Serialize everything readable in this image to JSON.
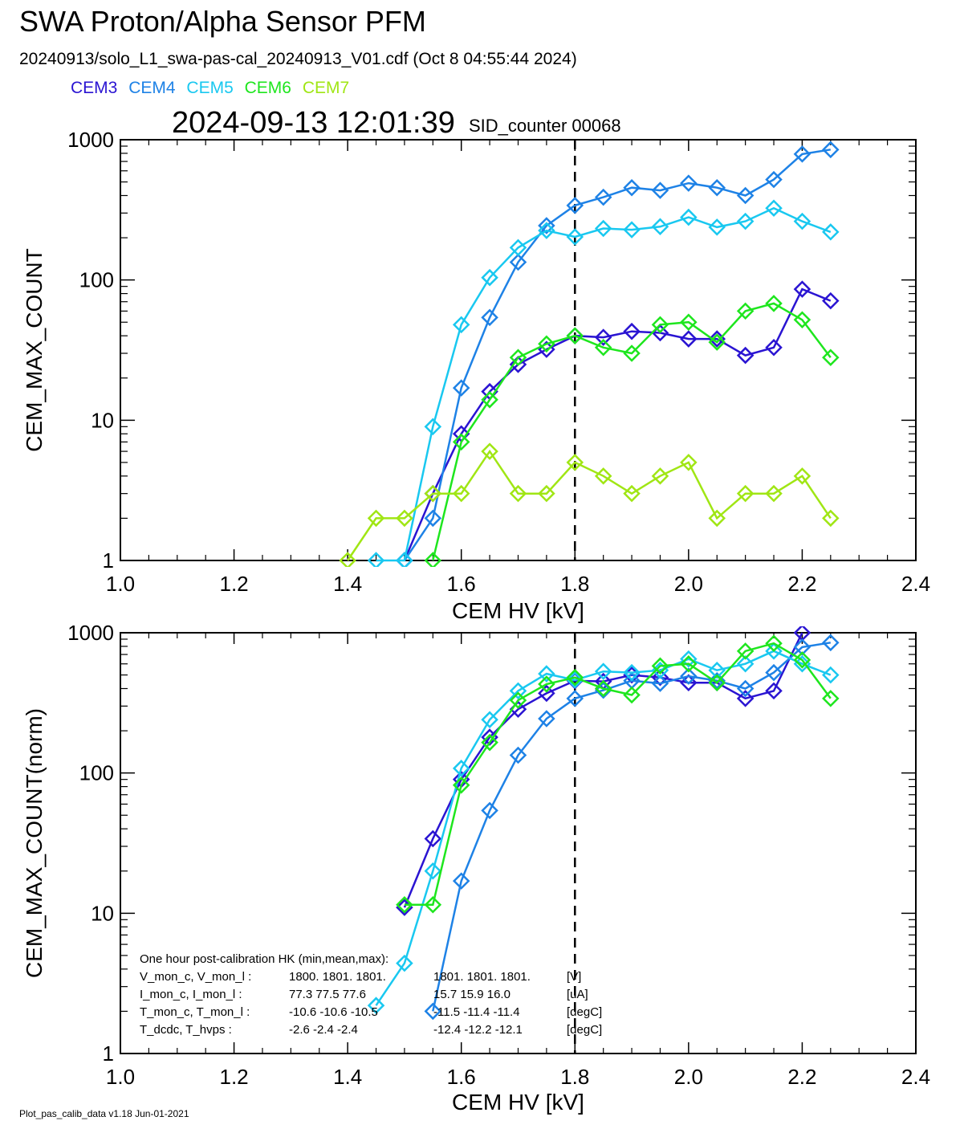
{
  "header": {
    "title": "SWA Proton/Alpha Sensor PFM",
    "subtitle": "20240913/solo_L1_swa-pas-cal_20240913_V01.cdf  (Oct  8 04:55:44 2024)",
    "timestamp": "2024-09-13 12:01:39",
    "sid_counter": "SID_counter 00068"
  },
  "legend": [
    {
      "label": "CEM3",
      "color": "#2a14d2"
    },
    {
      "label": "CEM4",
      "color": "#1e82e6"
    },
    {
      "label": "CEM5",
      "color": "#19c8f0"
    },
    {
      "label": "CEM6",
      "color": "#1ee61e"
    },
    {
      "label": "CEM7",
      "color": "#a0e614"
    }
  ],
  "footer": "Plot_pas_calib_data v1.18 Jun-01-2021",
  "hk_box": {
    "heading": "One hour post-calibration HK (min,mean,max):",
    "rows": [
      {
        "label": "V_mon_c, V_mon_l :",
        "a": "1800.  1801.  1801.",
        "b": "1801.  1801.  1801.",
        "unit": "[V]"
      },
      {
        "label": "I_mon_c,  I_mon_l :",
        "a": "77.3   77.5   77.6",
        "b": "15.7   15.9   16.0",
        "unit": "[uA]"
      },
      {
        "label": "T_mon_c, T_mon_l :",
        "a": "-10.6  -10.6  -10.5",
        "b": "-11.5  -11.4  -11.4",
        "unit": "[degC]"
      },
      {
        "label": "T_dcdc,    T_hvps :",
        "a": "-2.6   -2.4   -2.4",
        "b": "-12.4  -12.2  -12.1",
        "unit": "[degC]"
      }
    ]
  },
  "chart_data": [
    {
      "type": "line",
      "title": "",
      "xlabel": "CEM HV [kV]",
      "ylabel": "CEM_MAX_COUNT",
      "xlim": [
        1.0,
        2.4
      ],
      "ylim": [
        1,
        1000
      ],
      "yscale": "log",
      "xticks": [
        "1.0",
        "1.2",
        "1.4",
        "1.6",
        "1.8",
        "2.0",
        "2.2",
        "2.4"
      ],
      "yticks": [
        "1",
        "10",
        "100",
        "1000"
      ],
      "vline": 1.8,
      "series": [
        {
          "name": "CEM3",
          "color": "#2a14d2",
          "points": [
            [
              1.5,
              1
            ],
            [
              1.55,
              3
            ],
            [
              1.6,
              8
            ],
            [
              1.65,
              16
            ],
            [
              1.7,
              25
            ],
            [
              1.75,
              32
            ],
            [
              1.8,
              40
            ],
            [
              1.85,
              39
            ],
            [
              1.9,
              43
            ],
            [
              1.95,
              42
            ],
            [
              2.0,
              38
            ],
            [
              2.05,
              38
            ],
            [
              2.1,
              29
            ],
            [
              2.15,
              33
            ],
            [
              2.2,
              86
            ],
            [
              2.25,
              71
            ]
          ]
        },
        {
          "name": "CEM4",
          "color": "#1e82e6",
          "points": [
            [
              1.5,
              1
            ],
            [
              1.55,
              2
            ],
            [
              1.6,
              17
            ],
            [
              1.65,
              54
            ],
            [
              1.7,
              134
            ],
            [
              1.75,
              244
            ],
            [
              1.8,
              340
            ],
            [
              1.85,
              389
            ],
            [
              1.9,
              455
            ],
            [
              1.95,
              435
            ],
            [
              2.0,
              490
            ],
            [
              2.05,
              455
            ],
            [
              2.1,
              400
            ],
            [
              2.15,
              520
            ],
            [
              2.2,
              790
            ],
            [
              2.25,
              850
            ]
          ]
        },
        {
          "name": "CEM5",
          "color": "#19c8f0",
          "points": [
            [
              1.45,
              1
            ],
            [
              1.5,
              1
            ],
            [
              1.55,
              9
            ],
            [
              1.6,
              48
            ],
            [
              1.65,
              104
            ],
            [
              1.7,
              170
            ],
            [
              1.75,
              225
            ],
            [
              1.8,
              203
            ],
            [
              1.85,
              233
            ],
            [
              1.9,
              228
            ],
            [
              1.95,
              240
            ],
            [
              2.0,
              280
            ],
            [
              2.05,
              238
            ],
            [
              2.1,
              262
            ],
            [
              2.15,
              325
            ],
            [
              2.2,
              262
            ],
            [
              2.25,
              220
            ]
          ]
        },
        {
          "name": "CEM6",
          "color": "#1ee61e",
          "points": [
            [
              1.55,
              1
            ],
            [
              1.6,
              7
            ],
            [
              1.65,
              14
            ],
            [
              1.7,
              28
            ],
            [
              1.75,
              35
            ],
            [
              1.8,
              40
            ],
            [
              1.85,
              33
            ],
            [
              1.9,
              30
            ],
            [
              1.95,
              48
            ],
            [
              2.0,
              50
            ],
            [
              2.05,
              36
            ],
            [
              2.1,
              60
            ],
            [
              2.15,
              68
            ],
            [
              2.2,
              52
            ],
            [
              2.25,
              28
            ]
          ]
        },
        {
          "name": "CEM7",
          "color": "#a0e614",
          "points": [
            [
              1.4,
              1
            ],
            [
              1.45,
              2
            ],
            [
              1.5,
              2
            ],
            [
              1.55,
              3
            ],
            [
              1.6,
              3
            ],
            [
              1.65,
              6
            ],
            [
              1.7,
              3
            ],
            [
              1.75,
              3
            ],
            [
              1.8,
              5
            ],
            [
              1.85,
              4
            ],
            [
              1.9,
              3
            ],
            [
              1.95,
              4
            ],
            [
              2.0,
              5
            ],
            [
              2.05,
              2
            ],
            [
              2.1,
              3
            ],
            [
              2.15,
              3
            ],
            [
              2.2,
              4
            ],
            [
              2.25,
              2
            ]
          ]
        }
      ]
    },
    {
      "type": "line",
      "title": "",
      "xlabel": "CEM HV [kV]",
      "ylabel": "CEM_MAX_COUNT(norm)",
      "xlim": [
        1.0,
        2.4
      ],
      "ylim": [
        1,
        1000
      ],
      "yscale": "log",
      "xticks": [
        "1.0",
        "1.2",
        "1.4",
        "1.6",
        "1.8",
        "2.0",
        "2.2",
        "2.4"
      ],
      "yticks": [
        "1",
        "10",
        "100",
        "1000"
      ],
      "vline": 1.8,
      "series": [
        {
          "name": "CEM3",
          "color": "#2a14d2",
          "points": [
            [
              1.5,
              11
            ],
            [
              1.55,
              34
            ],
            [
              1.6,
              90
            ],
            [
              1.65,
              180
            ],
            [
              1.7,
              285
            ],
            [
              1.75,
              370
            ],
            [
              1.8,
              455
            ],
            [
              1.85,
              450
            ],
            [
              1.9,
              500
            ],
            [
              1.95,
              480
            ],
            [
              2.0,
              440
            ],
            [
              2.05,
              440
            ],
            [
              2.1,
              340
            ],
            [
              2.15,
              385
            ],
            [
              2.2,
              1000
            ]
          ]
        },
        {
          "name": "CEM4",
          "color": "#1e82e6",
          "points": [
            [
              1.55,
              2
            ],
            [
              1.6,
              17
            ],
            [
              1.65,
              54
            ],
            [
              1.7,
              134
            ],
            [
              1.75,
              244
            ],
            [
              1.8,
              340
            ],
            [
              1.85,
              389
            ],
            [
              1.9,
              455
            ],
            [
              1.95,
              435
            ],
            [
              2.0,
              490
            ],
            [
              2.05,
              455
            ],
            [
              2.1,
              400
            ],
            [
              2.15,
              520
            ],
            [
              2.2,
              790
            ],
            [
              2.25,
              850
            ]
          ]
        },
        {
          "name": "CEM5",
          "color": "#19c8f0",
          "points": [
            [
              1.45,
              2.2
            ],
            [
              1.5,
              4.4
            ],
            [
              1.55,
              20
            ],
            [
              1.6,
              108
            ],
            [
              1.65,
              240
            ],
            [
              1.7,
              385
            ],
            [
              1.75,
              510
            ],
            [
              1.8,
              460
            ],
            [
              1.85,
              530
            ],
            [
              1.9,
              520
            ],
            [
              1.95,
              540
            ],
            [
              2.0,
              650
            ],
            [
              2.05,
              540
            ],
            [
              2.1,
              600
            ],
            [
              2.15,
              740
            ],
            [
              2.2,
              600
            ],
            [
              2.25,
              500
            ]
          ]
        },
        {
          "name": "CEM6",
          "color": "#1ee61e",
          "points": [
            [
              1.5,
              11.5
            ],
            [
              1.55,
              11.5
            ],
            [
              1.6,
              82
            ],
            [
              1.65,
              165
            ],
            [
              1.7,
              330
            ],
            [
              1.75,
              430
            ],
            [
              1.8,
              480
            ],
            [
              1.85,
              400
            ],
            [
              1.9,
              360
            ],
            [
              1.95,
              580
            ],
            [
              2.0,
              600
            ],
            [
              2.05,
              440
            ],
            [
              2.1,
              740
            ],
            [
              2.15,
              840
            ],
            [
              2.2,
              640
            ],
            [
              2.25,
              340
            ]
          ]
        }
      ]
    }
  ]
}
